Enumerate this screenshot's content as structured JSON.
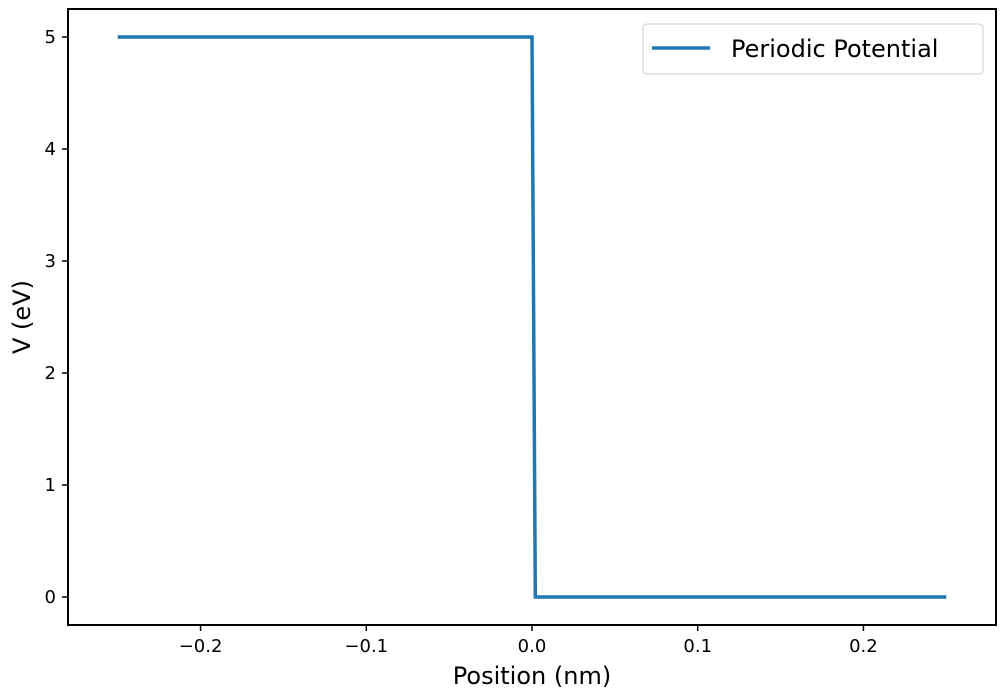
{
  "chart_data": {
    "type": "line",
    "x": [
      -0.25,
      0,
      0.002,
      0.25
    ],
    "series": [
      {
        "name": "Periodic Potential",
        "color": "#1f77b4",
        "values": [
          5,
          5,
          0,
          0
        ]
      }
    ],
    "xlabel": "Position (nm)",
    "ylabel": "V (eV)",
    "xlim": [
      -0.28,
      0.28
    ],
    "ylim": [
      -0.25,
      5.25
    ],
    "xticks": [
      {
        "value": -0.2,
        "label": "−0.2"
      },
      {
        "value": -0.1,
        "label": "−0.1"
      },
      {
        "value": 0,
        "label": "0.0"
      },
      0.1,
      0.2
    ],
    "yticks": [
      0,
      1,
      2,
      3,
      4,
      5
    ],
    "legend": "upper right"
  }
}
